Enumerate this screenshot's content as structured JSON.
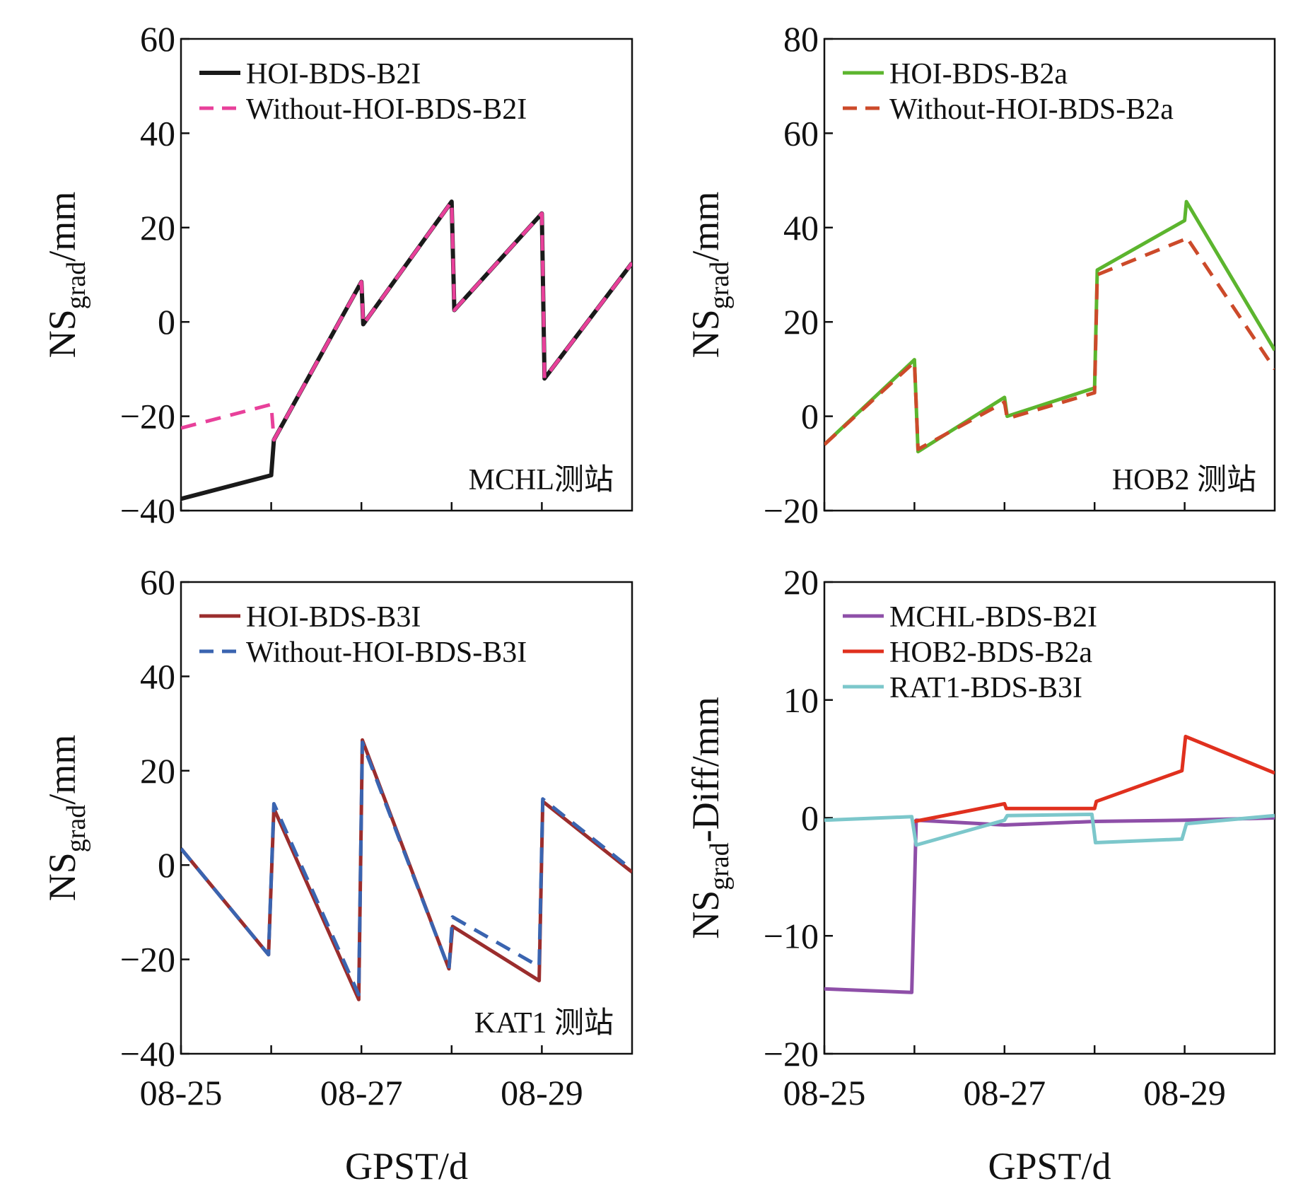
{
  "chart_data": [
    {
      "type": "line",
      "panel": "top-left",
      "ylabel": {
        "main": "NS",
        "sub": "grad",
        "rest": "/mm"
      },
      "xlabel": "",
      "ylim": [
        -40,
        60
      ],
      "yticks": [
        -40,
        -20,
        0,
        20,
        40,
        60
      ],
      "xlim": [
        0,
        5
      ],
      "xticks": [
        {
          "x": 0,
          "label": "08-25"
        },
        {
          "x": 2,
          "label": "08-27"
        },
        {
          "x": 4,
          "label": "08-29"
        }
      ],
      "station": "MCHL测站",
      "legend_position": "top-left",
      "series": [
        {
          "name": "HOI-BDS-B2I",
          "color": "#1a1a1a",
          "dash": false,
          "width": 6,
          "points": [
            [
              0,
              -37.5
            ],
            [
              1,
              -32.5
            ],
            [
              1.03,
              -25
            ],
            [
              2,
              8.5
            ],
            [
              2.02,
              -0.5
            ],
            [
              3,
              25.5
            ],
            [
              3.03,
              2.5
            ],
            [
              4,
              23
            ],
            [
              4.03,
              -12
            ],
            [
              5,
              12.5
            ]
          ]
        },
        {
          "name": "Without-HOI-BDS-B2I",
          "color": "#e8409a",
          "dash": true,
          "width": 5,
          "points": [
            [
              0,
              -22.5
            ],
            [
              1,
              -17.5
            ],
            [
              1.03,
              -25
            ],
            [
              2,
              8.5
            ],
            [
              2.02,
              -0.5
            ],
            [
              3,
              25.5
            ],
            [
              3.03,
              2.5
            ],
            [
              4,
              23
            ],
            [
              4.03,
              -12
            ],
            [
              5,
              12.5
            ]
          ]
        }
      ]
    },
    {
      "type": "line",
      "panel": "top-right",
      "ylabel": {
        "main": "NS",
        "sub": "grad",
        "rest": "/mm"
      },
      "xlabel": "",
      "ylim": [
        -20,
        80
      ],
      "yticks": [
        -20,
        0,
        20,
        40,
        60,
        80
      ],
      "xlim": [
        0,
        5
      ],
      "xticks": [
        {
          "x": 0,
          "label": "08-25"
        },
        {
          "x": 2,
          "label": "08-27"
        },
        {
          "x": 4,
          "label": "08-29"
        }
      ],
      "station": "HOB2 测站",
      "legend_position": "top-left",
      "series": [
        {
          "name": "HOI-BDS-B2a",
          "color": "#5cb52e",
          "dash": false,
          "width": 5,
          "points": [
            [
              0,
              -6
            ],
            [
              1,
              12
            ],
            [
              1.04,
              -7.5
            ],
            [
              2,
              4
            ],
            [
              2.03,
              0
            ],
            [
              3,
              6
            ],
            [
              3.03,
              31
            ],
            [
              4,
              41.5
            ],
            [
              4.02,
              45.5
            ],
            [
              5,
              14
            ]
          ]
        },
        {
          "name": "Without-HOI-BDS-B2a",
          "color": "#cc4a2a",
          "dash": true,
          "width": 5,
          "points": [
            [
              0,
              -6
            ],
            [
              1,
              11.5
            ],
            [
              1.04,
              -7
            ],
            [
              2,
              3
            ],
            [
              2.03,
              -0.5
            ],
            [
              3,
              5
            ],
            [
              3.03,
              30
            ],
            [
              4,
              37.5
            ],
            [
              4.02,
              38
            ],
            [
              5,
              10
            ]
          ]
        }
      ]
    },
    {
      "type": "line",
      "panel": "bottom-left",
      "ylabel": {
        "main": "NS",
        "sub": "grad",
        "rest": "/mm"
      },
      "xlabel": "GPST/d",
      "ylim": [
        -40,
        60
      ],
      "yticks": [
        -40,
        -20,
        0,
        20,
        40,
        60
      ],
      "xlim": [
        0,
        5
      ],
      "xticks": [
        {
          "x": 0,
          "label": "08-25"
        },
        {
          "x": 2,
          "label": "08-27"
        },
        {
          "x": 4,
          "label": "08-29"
        }
      ],
      "station": "KAT1 测站",
      "legend_position": "top-left",
      "series": [
        {
          "name": "HOI-BDS-B3I",
          "color": "#9b2d2d",
          "dash": false,
          "width": 5,
          "points": [
            [
              0,
              3.5
            ],
            [
              0.97,
              -19
            ],
            [
              1.03,
              12
            ],
            [
              1.97,
              -28.5
            ],
            [
              2.01,
              26.5
            ],
            [
              2.97,
              -22
            ],
            [
              3.01,
              -13
            ],
            [
              3.97,
              -24.5
            ],
            [
              4.01,
              13.5
            ],
            [
              5,
              -1.5
            ]
          ]
        },
        {
          "name": "Without-HOI-BDS-B3I",
          "color": "#3a64b0",
          "dash": true,
          "width": 5,
          "points": [
            [
              0,
              3.5
            ],
            [
              0.97,
              -19
            ],
            [
              1.03,
              13
            ],
            [
              1.97,
              -27.5
            ],
            [
              2.01,
              26
            ],
            [
              2.97,
              -22
            ],
            [
              3.01,
              -11
            ],
            [
              3.97,
              -21.5
            ],
            [
              4.01,
              14
            ],
            [
              5,
              -1
            ]
          ]
        }
      ]
    },
    {
      "type": "line",
      "panel": "bottom-right",
      "ylabel": {
        "main": "NS",
        "sub": "grad",
        "rest": "-Diff/mm"
      },
      "xlabel": "GPST/d",
      "ylim": [
        -20,
        20
      ],
      "yticks": [
        -20,
        -10,
        0,
        10,
        20
      ],
      "xlim": [
        0,
        5
      ],
      "xticks": [
        {
          "x": 0,
          "label": "08-25"
        },
        {
          "x": 2,
          "label": "08-27"
        },
        {
          "x": 4,
          "label": "08-29"
        }
      ],
      "station": "",
      "legend_position": "top-left",
      "series": [
        {
          "name": "MCHL-BDS-B2I",
          "color": "#8e4fa8",
          "dash": false,
          "width": 5,
          "points": [
            [
              0,
              -14.5
            ],
            [
              0.97,
              -14.8
            ],
            [
              1.02,
              -0.2
            ],
            [
              2,
              -0.6
            ],
            [
              3,
              -0.3
            ],
            [
              4,
              -0.2
            ],
            [
              5,
              0
            ]
          ]
        },
        {
          "name": "HOB2-BDS-B2a",
          "color": "#e0301e",
          "dash": false,
          "width": 5,
          "points": [
            [
              1,
              -0.3
            ],
            [
              2,
              1.2
            ],
            [
              2.02,
              0.8
            ],
            [
              3,
              0.8
            ],
            [
              3.02,
              1.4
            ],
            [
              3.97,
              4
            ],
            [
              4.01,
              6.9
            ],
            [
              5,
              3.8
            ]
          ]
        },
        {
          "name": "RAT1-BDS-B3I",
          "color": "#7cc7cb",
          "dash": false,
          "width": 5,
          "points": [
            [
              0,
              -0.2
            ],
            [
              0.97,
              0.1
            ],
            [
              1.02,
              -2.3
            ],
            [
              2,
              -0.2
            ],
            [
              2.03,
              0.2
            ],
            [
              2.97,
              0.3
            ],
            [
              3.01,
              -2.1
            ],
            [
              3.97,
              -1.8
            ],
            [
              4.02,
              -0.5
            ],
            [
              5,
              0.2
            ]
          ]
        }
      ]
    }
  ]
}
